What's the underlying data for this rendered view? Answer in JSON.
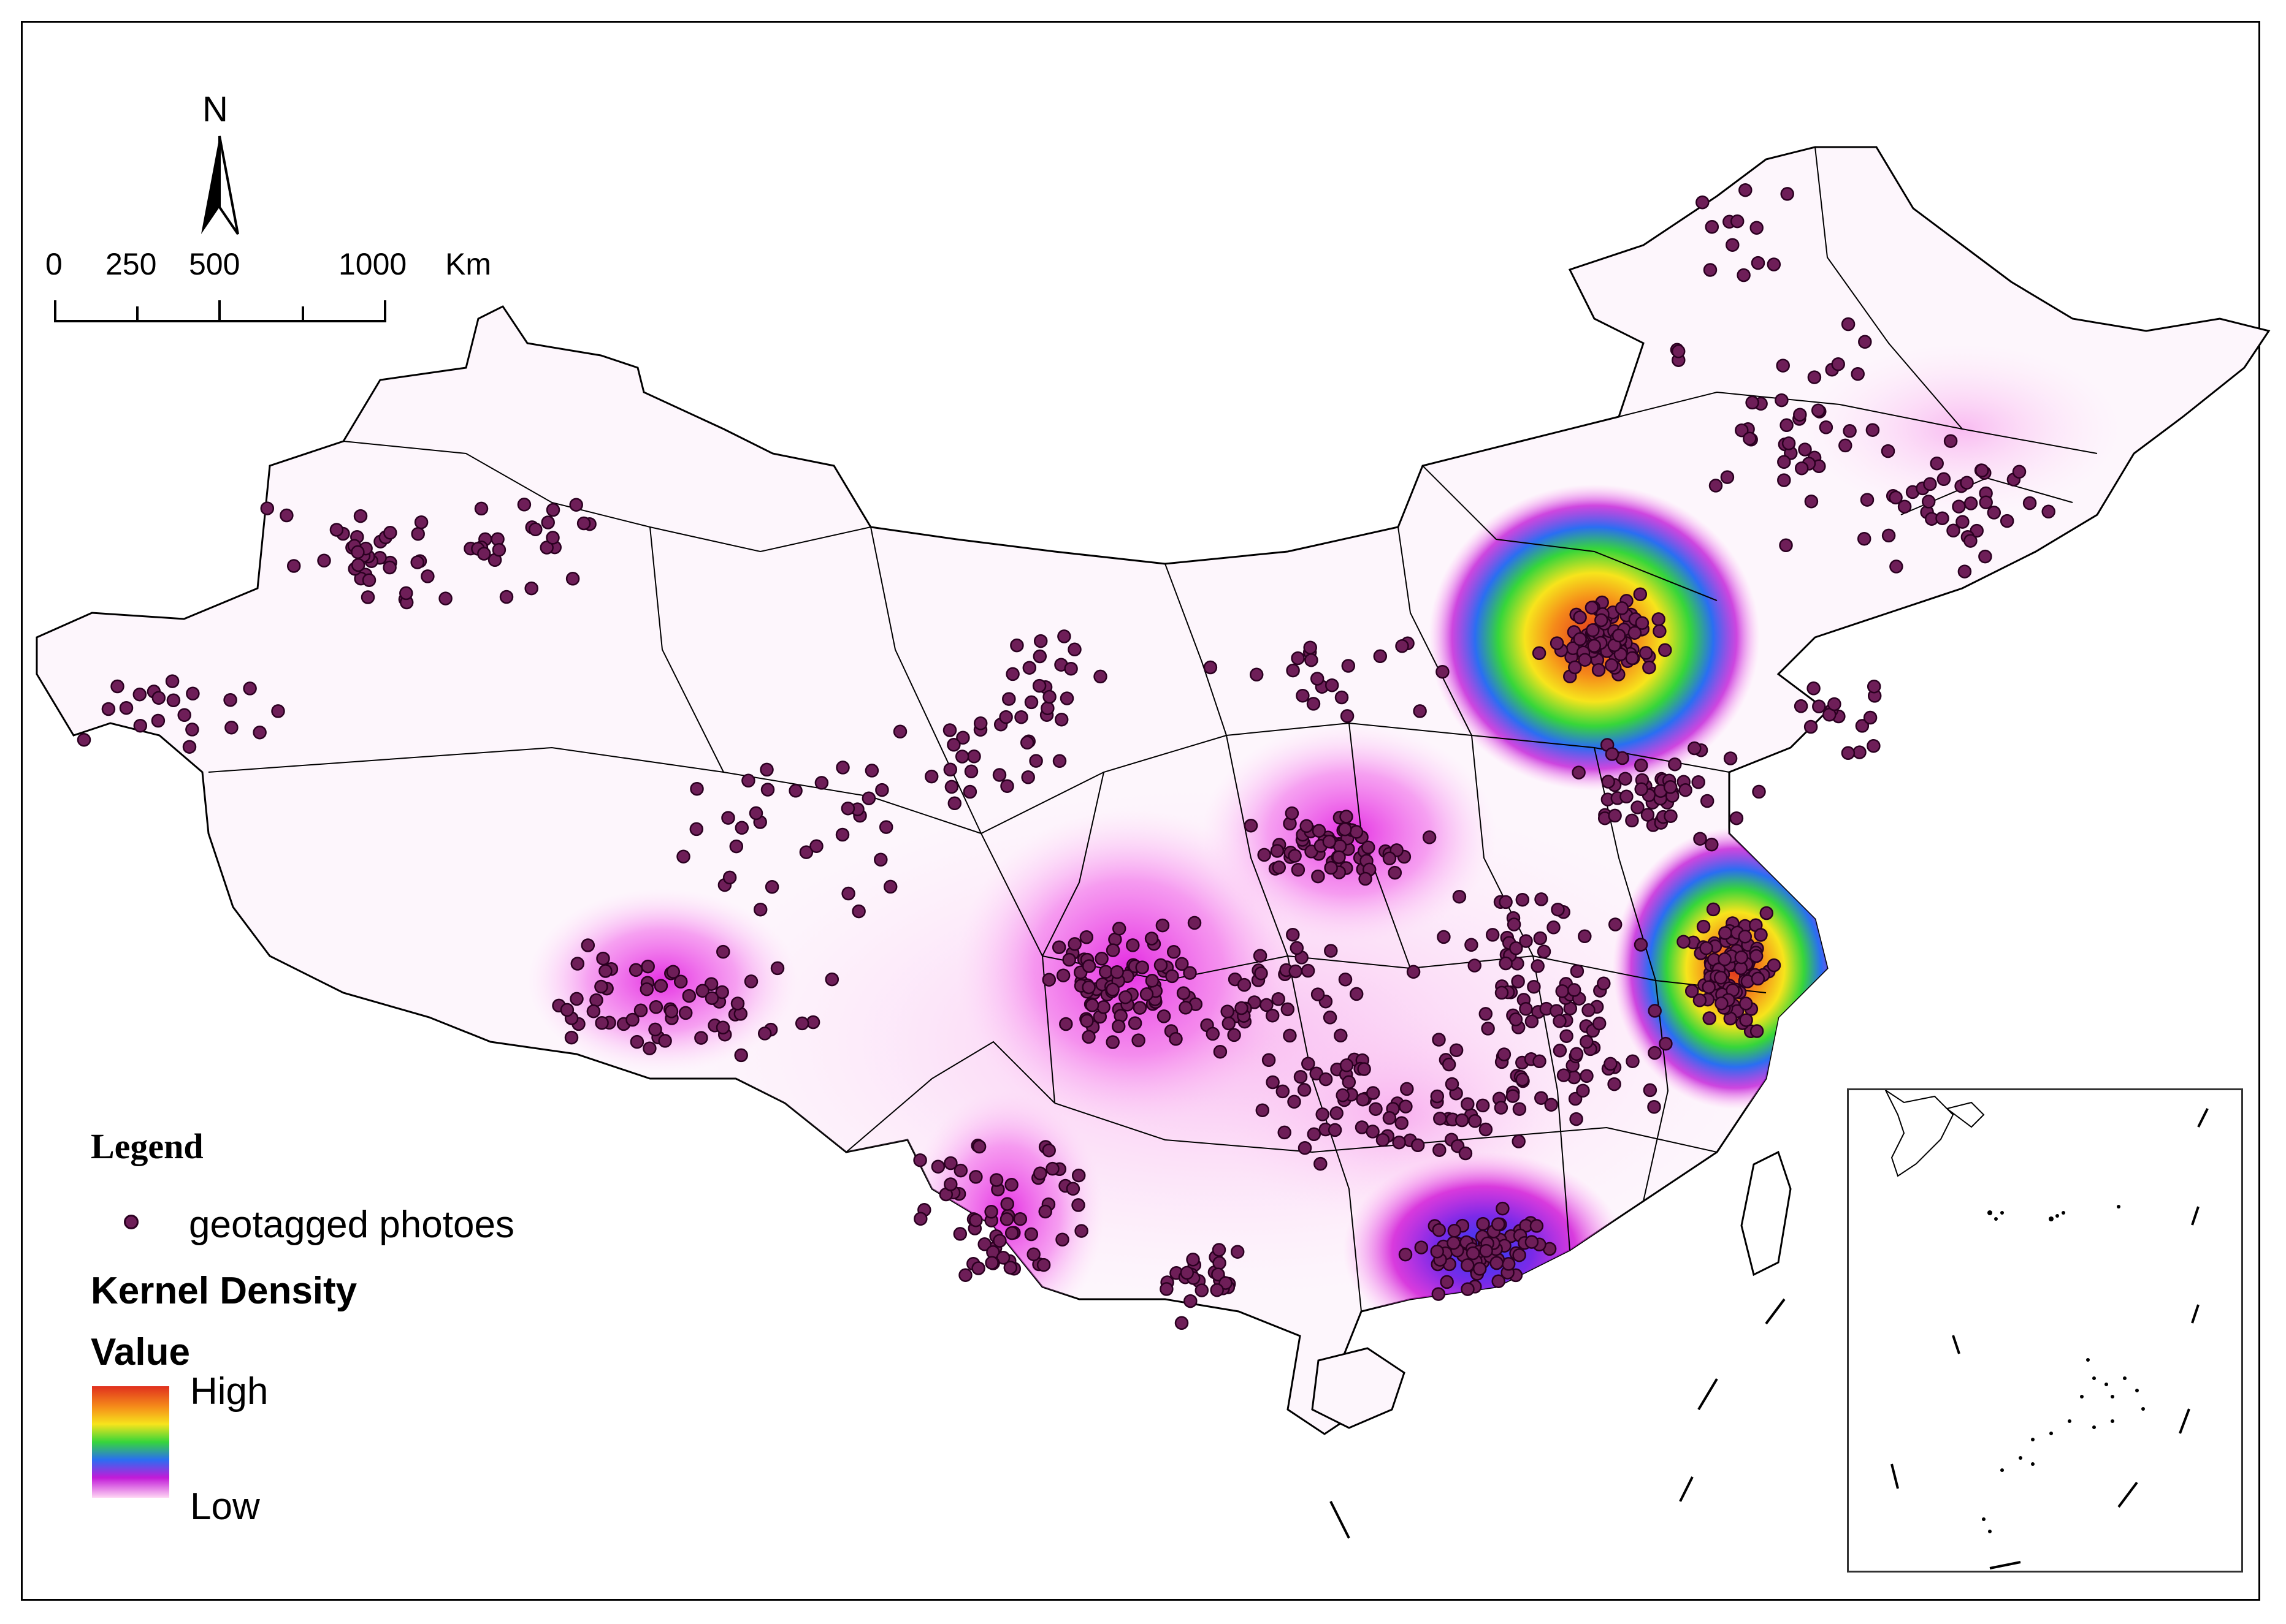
{
  "map": {
    "north_label": "N",
    "scale_ticks": [
      "0",
      "250",
      "500",
      "1000"
    ],
    "scale_unit": "Km"
  },
  "legend": {
    "title": "Legend",
    "point_label": "geotagged photoes",
    "density_title": "Kernel Density",
    "value_title": "Value",
    "high_label": "High",
    "low_label": "Low"
  },
  "colors": {
    "point_fill": "#6e1e58",
    "density_high": "#e0301e",
    "density_mid": "#36d63a",
    "density_low": "#c21ad8",
    "land": "#fdf6fc"
  },
  "hotspots": [
    {
      "region": "north",
      "level": "high"
    },
    {
      "region": "east",
      "level": "high"
    },
    {
      "region": "south",
      "level": "medium"
    },
    {
      "region": "central",
      "level": "low"
    },
    {
      "region": "southwest",
      "level": "low"
    }
  ]
}
